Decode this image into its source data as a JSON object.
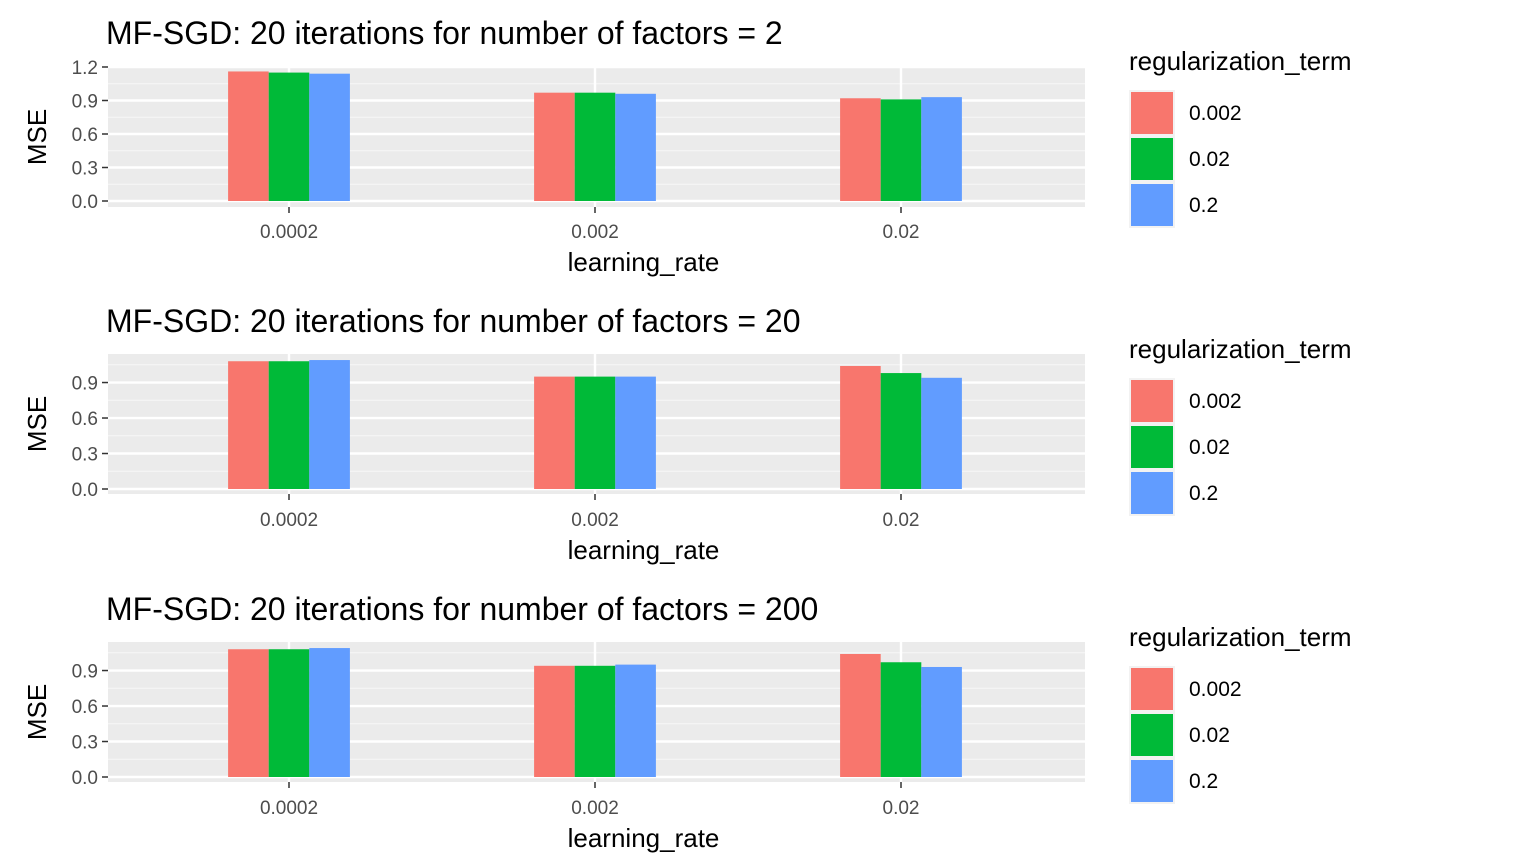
{
  "chart_data": [
    {
      "type": "bar",
      "title": "MF-SGD: 20 iterations for number of factors = 2",
      "xlabel": "learning_rate",
      "ylabel": "MSE",
      "categories": [
        "0.0002",
        "0.002",
        "0.02"
      ],
      "yticks": [
        "0.0",
        "0.3",
        "0.6",
        "0.9",
        "1.2"
      ],
      "ylim": [
        0,
        1.22
      ],
      "legend_title": "regularization_term",
      "legend_position": "right",
      "grid": true,
      "series": [
        {
          "name": "0.002",
          "color": "#F8766D",
          "values": [
            1.16,
            0.97,
            0.92
          ]
        },
        {
          "name": "0.02",
          "color": "#00BA38",
          "values": [
            1.15,
            0.97,
            0.91
          ]
        },
        {
          "name": "0.2",
          "color": "#619CFF",
          "values": [
            1.14,
            0.96,
            0.93
          ]
        }
      ]
    },
    {
      "type": "bar",
      "title": "MF-SGD: 20 iterations for number of factors = 20",
      "xlabel": "learning_rate",
      "ylabel": "MSE",
      "categories": [
        "0.0002",
        "0.002",
        "0.02"
      ],
      "yticks": [
        "0.0",
        "0.3",
        "0.6",
        "0.9"
      ],
      "ylim": [
        0,
        1.12
      ],
      "legend_title": "regularization_term",
      "legend_position": "right",
      "grid": true,
      "series": [
        {
          "name": "0.002",
          "color": "#F8766D",
          "values": [
            1.08,
            0.95,
            1.04
          ]
        },
        {
          "name": "0.02",
          "color": "#00BA38",
          "values": [
            1.08,
            0.95,
            0.98
          ]
        },
        {
          "name": "0.2",
          "color": "#619CFF",
          "values": [
            1.09,
            0.95,
            0.94
          ]
        }
      ]
    },
    {
      "type": "bar",
      "title": "MF-SGD: 20 iterations for number of factors = 200",
      "xlabel": "learning_rate",
      "ylabel": "MSE",
      "categories": [
        "0.0002",
        "0.002",
        "0.02"
      ],
      "yticks": [
        "0.0",
        "0.3",
        "0.6",
        "0.9"
      ],
      "ylim": [
        0,
        1.12
      ],
      "legend_title": "regularization_term",
      "legend_position": "right",
      "grid": true,
      "series": [
        {
          "name": "0.002",
          "color": "#F8766D",
          "values": [
            1.08,
            0.94,
            1.04
          ]
        },
        {
          "name": "0.02",
          "color": "#00BA38",
          "values": [
            1.08,
            0.94,
            0.97
          ]
        },
        {
          "name": "0.2",
          "color": "#619CFF",
          "values": [
            1.09,
            0.95,
            0.93
          ]
        }
      ]
    }
  ]
}
